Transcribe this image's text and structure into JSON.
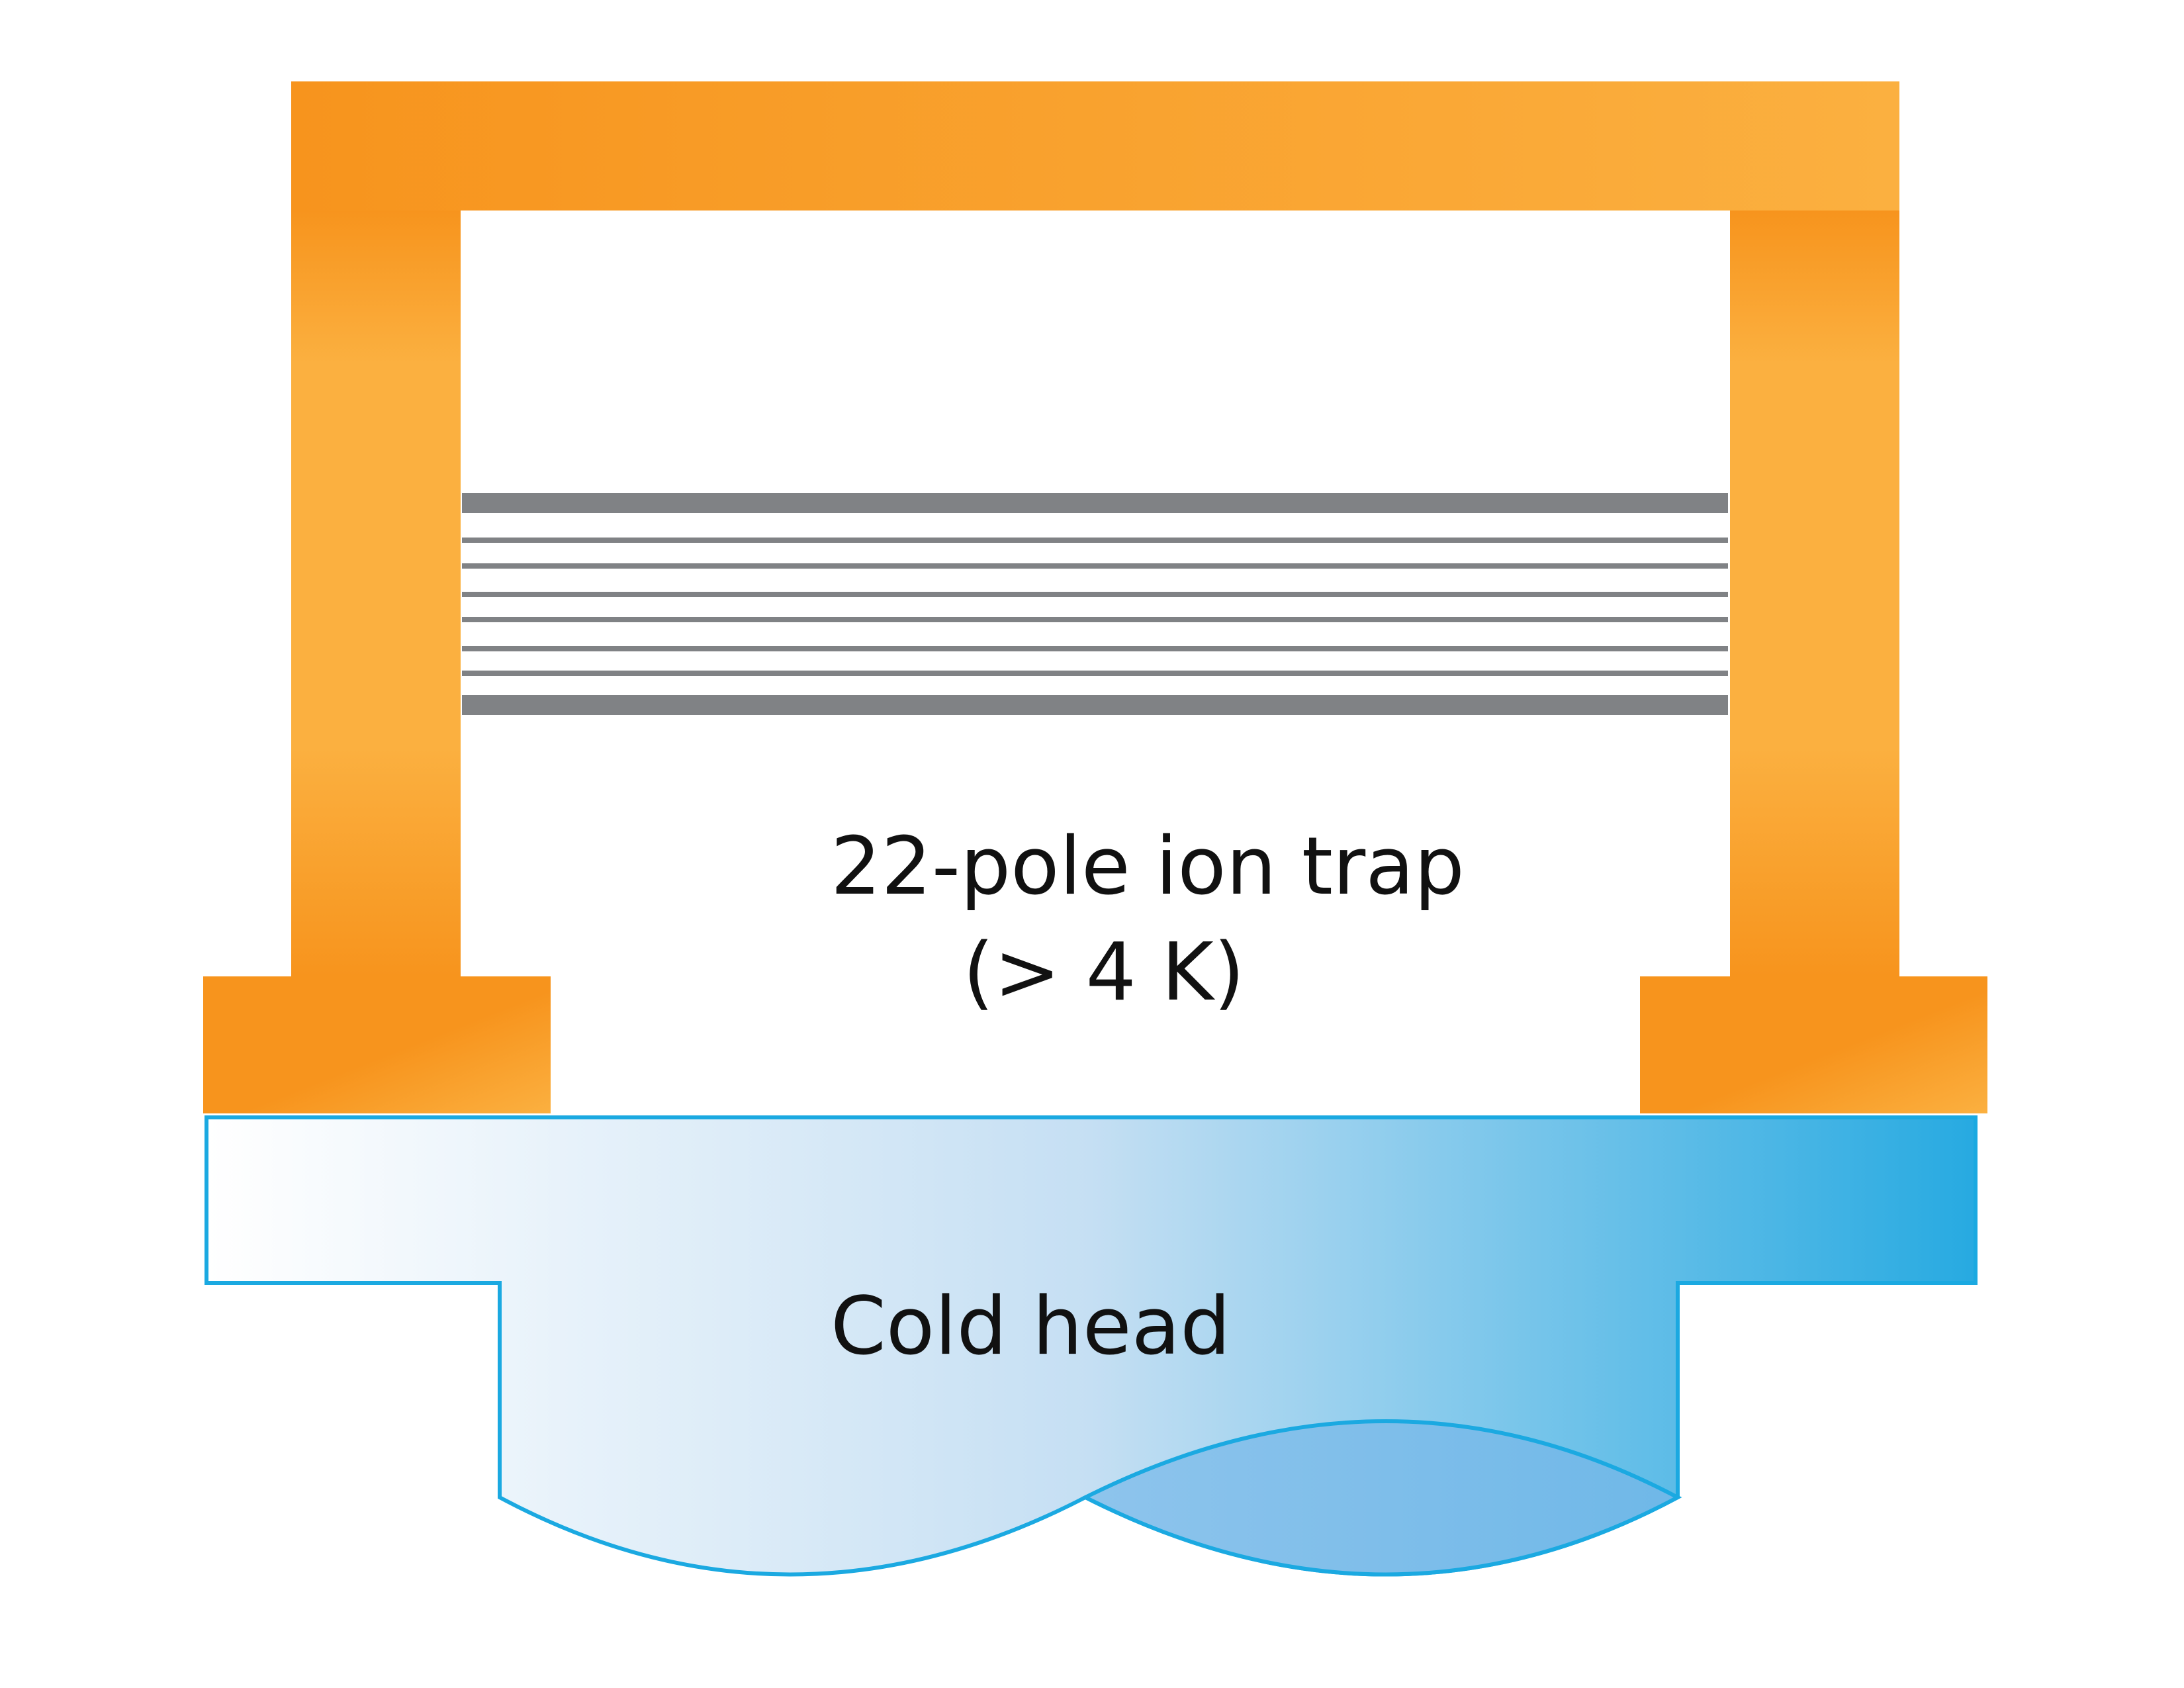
{
  "labels": {
    "trap_name": "22-pole ion trap",
    "trap_temp": "(> 4 K)",
    "cold_head": "Cold head"
  },
  "colors": {
    "copper_dark": "#f7941d",
    "copper_light": "#fbb040",
    "rod_gray": "#808285",
    "cold_head_light": "#ffffff",
    "cold_head_dark": "#27aae1",
    "cold_head_outline": "#1ba9e1"
  },
  "components": [
    "copper-holder",
    "22-pole-rods",
    "cold-head"
  ],
  "rods": {
    "count": 8
  }
}
